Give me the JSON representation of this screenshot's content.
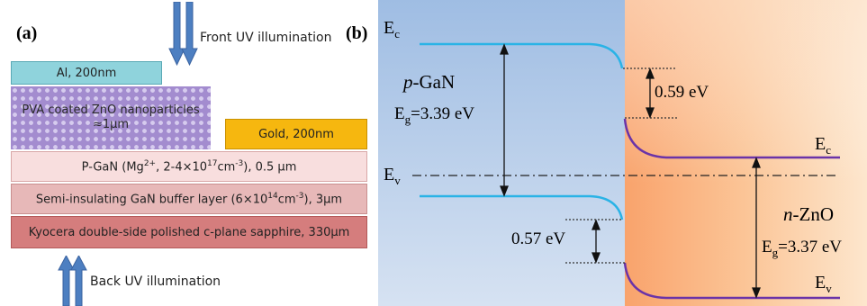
{
  "panel_a": {
    "label": "(a)",
    "front_illumination": "Front UV illumination",
    "back_illumination": "Back UV illumination",
    "al_layer": "Al, 200nm",
    "zno_layer_line1": "PVA coated ZnO nanoparticles",
    "zno_layer_line2": "≈1μm",
    "gold_layer": "Gold, 200nm",
    "pgan_layer": "P-GaN (Mg2+, 2-4×1017cm-3), 0.5 μm",
    "buffer_layer": "Semi-insulating GaN buffer layer (6×1014cm-3), 3μm",
    "sapphire_layer": "Kyocera double-side polished c-plane sapphire, 330μm",
    "colors": {
      "al": "#8fd3dc",
      "zno": "#a38ccf",
      "gold": "#f6b70f",
      "pgan": "#f8dede",
      "buffer": "#e7b8b8",
      "sapphire": "#d57d7d",
      "arrow": "#4d7fc1"
    }
  },
  "panel_b": {
    "label": "(b)",
    "ec_left": "E",
    "ec_left_sub": "c",
    "ev_left": "E",
    "ev_left_sub": "v",
    "ec_right": "E",
    "ec_right_sub": "c",
    "ev_right": "E",
    "ev_right_sub": "v",
    "pgan_name_italic": "p",
    "pgan_name_rest": "-GaN",
    "pgan_eg_prefix": "E",
    "pgan_eg_sub": "g",
    "pgan_eg_value": "=3.39 eV",
    "zno_name_italic": "n",
    "zno_name_rest": "-ZnO",
    "zno_eg_prefix": "E",
    "zno_eg_sub": "g",
    "zno_eg_value": "=3.37 eV",
    "conduction_offset": "0.59 eV",
    "valence_offset": "0.57 eV",
    "colors": {
      "pgan_band": "#2ab3e6",
      "zno_band": "#6a33a8",
      "left_bg_top": "#9fbde3",
      "left_bg_bottom": "#cddcf0",
      "right_bg": "#f7a86f"
    }
  }
}
